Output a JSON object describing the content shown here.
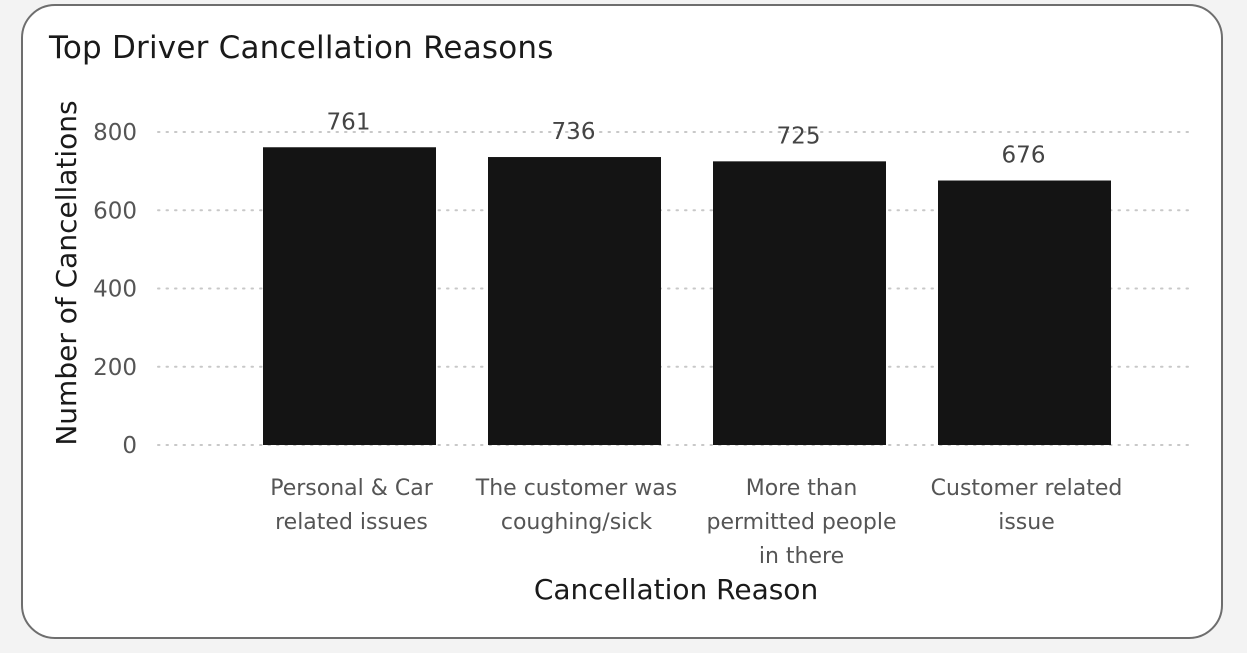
{
  "colors": {
    "bar": "#141414",
    "gridline": "#c8c8c8",
    "card_border": "#6e6e6e",
    "background": "#ffffff"
  },
  "chart_data": {
    "type": "bar",
    "title": "Top Driver Cancellation Reasons",
    "xlabel": "Cancellation Reason",
    "ylabel": "Number of Cancellations",
    "categories": [
      [
        "Personal & Car",
        "related issues"
      ],
      [
        "The customer was",
        "coughing/sick"
      ],
      [
        "More than",
        "permitted people",
        "in there"
      ],
      [
        "Customer related",
        "issue"
      ]
    ],
    "values": [
      761,
      736,
      725,
      676
    ],
    "data_labels": [
      "761",
      "736",
      "725",
      "676"
    ],
    "ylim": [
      0,
      800
    ],
    "yticks": [
      0,
      200,
      400,
      600,
      800
    ],
    "grid": true,
    "legend": "none"
  }
}
